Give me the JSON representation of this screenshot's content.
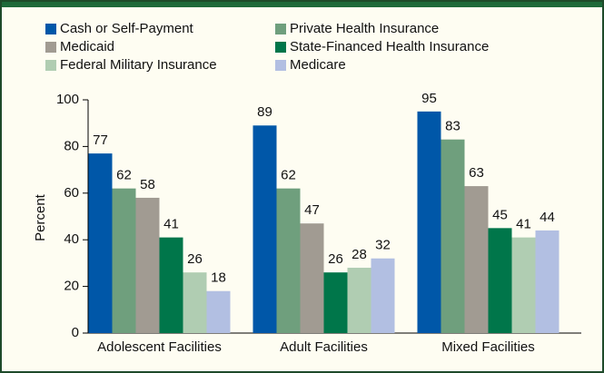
{
  "chart_data": {
    "type": "bar",
    "y_label": "Percent",
    "categories": [
      "Adolescent Facilities",
      "Adult Facilities",
      "Mixed Facilities"
    ],
    "series": [
      {
        "name": "Cash or Self-Payment",
        "color": "#0057a8",
        "values": [
          77,
          89,
          95
        ]
      },
      {
        "name": "Private Health Insurance",
        "color": "#6f9f7d",
        "values": [
          62,
          62,
          83
        ]
      },
      {
        "name": "Medicaid",
        "color": "#a19b92",
        "values": [
          58,
          47,
          63
        ]
      },
      {
        "name": "State-Financed Health Insurance",
        "color": "#00764a",
        "values": [
          41,
          26,
          45
        ]
      },
      {
        "name": "Federal Military Insurance",
        "color": "#b0cdb2",
        "values": [
          26,
          28,
          41
        ]
      },
      {
        "name": "Medicare",
        "color": "#b2bfe2",
        "values": [
          18,
          32,
          44
        ]
      }
    ],
    "ylim": [
      0,
      100
    ],
    "yticks": [
      0,
      20,
      40,
      60,
      80,
      100
    ]
  }
}
